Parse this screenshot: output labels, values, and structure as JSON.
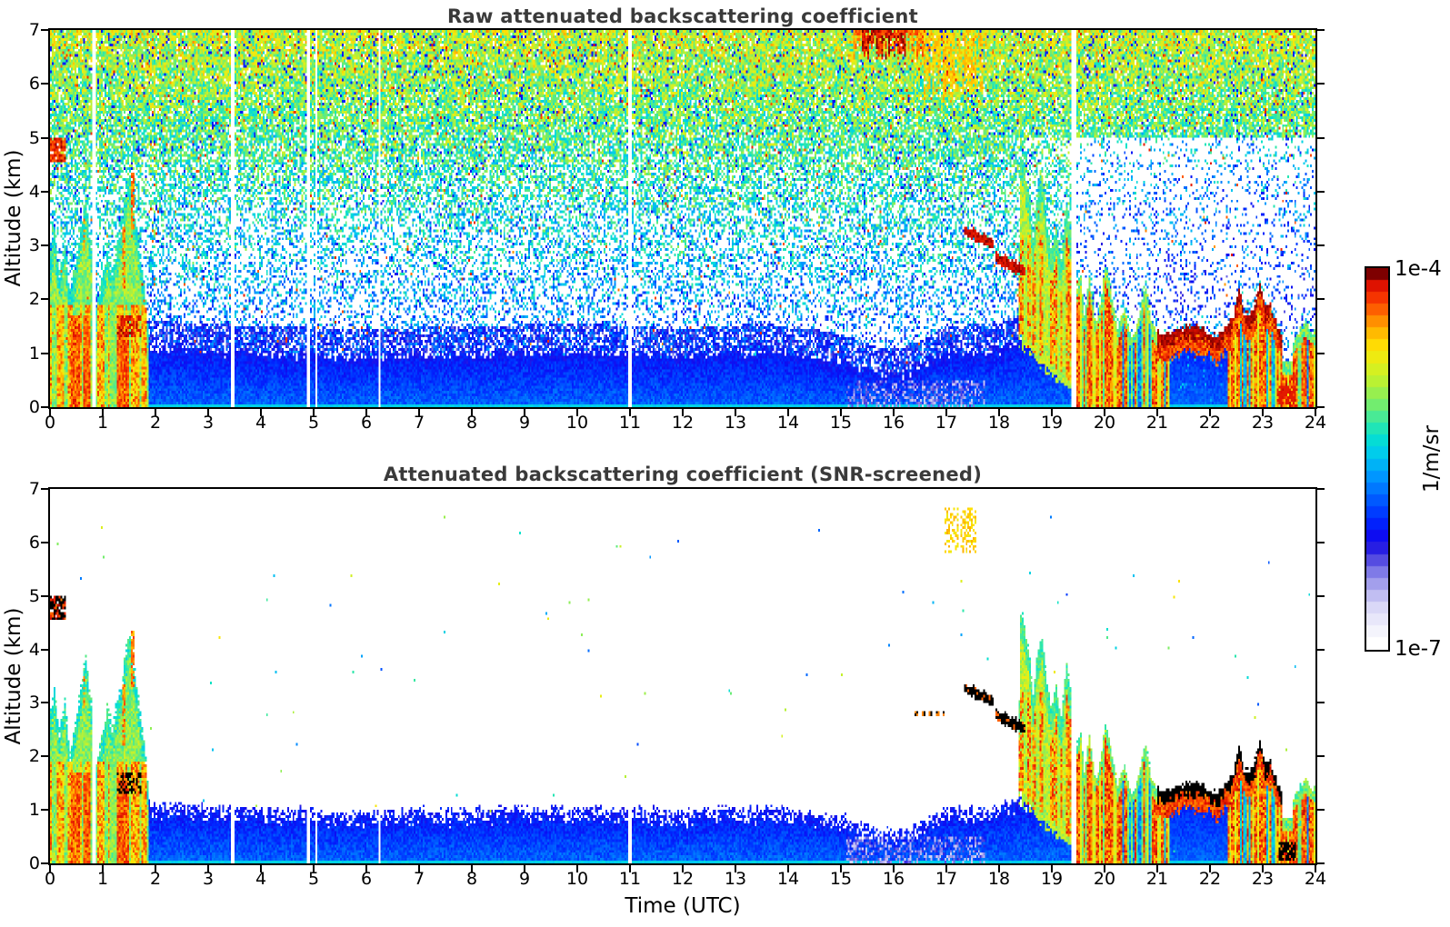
{
  "chart_data": {
    "type": "heatmap",
    "panels": [
      {
        "id": "raw",
        "screened": false,
        "title": "Raw attenuated backscattering coefficient",
        "description": "Time-height lidar curtain, noisy rainbow speckle increasing with altitude; solid blue boundary layer below ~1 km until 19.4 UTC; aerosol plumes 0-1.9 UTC up to 4.4 km; high cloud 15.3-17.8 UTC near 6-7 km; elevated dark-red layers near 3 km at 17.3-18.5 UTC; descending cloud/precipitation structures 18.4-24 UTC with dark-red cloud deck near 1.3 km from 21-23.5 UTC.",
        "x": {
          "label": "",
          "min": 0,
          "max": 24,
          "ticks": [
            0,
            1,
            2,
            3,
            4,
            5,
            6,
            7,
            8,
            9,
            10,
            11,
            12,
            13,
            14,
            15,
            16,
            17,
            18,
            19,
            20,
            21,
            22,
            23,
            24
          ]
        },
        "y": {
          "label": "Altitude (km)",
          "min": 0,
          "max": 7,
          "ticks": [
            0,
            1,
            2,
            3,
            4,
            5,
            6,
            7
          ]
        }
      },
      {
        "id": "screened",
        "screened": true,
        "title": "Attenuated backscattering coefficient (SNR-screened)",
        "description": "Same scene with noise screened to white; saturated returns shown in black (cloud deck, elevated layers, plume cores).",
        "x": {
          "label": "Time (UTC)",
          "min": 0,
          "max": 24,
          "ticks": [
            0,
            1,
            2,
            3,
            4,
            5,
            6,
            7,
            8,
            9,
            10,
            11,
            12,
            13,
            14,
            15,
            16,
            17,
            18,
            19,
            20,
            21,
            22,
            23,
            24
          ]
        },
        "y": {
          "label": "Altitude (km)",
          "min": 0,
          "max": 7,
          "ticks": [
            0,
            1,
            2,
            3,
            4,
            5,
            6,
            7
          ]
        }
      }
    ],
    "colorbar": {
      "max_label": "1e-4",
      "min_label": "1e-7",
      "unit_label": "1/m/sr",
      "scale": "log",
      "vmin": 1e-07,
      "vmax": 0.0001,
      "n_segments": 32,
      "stops": [
        [
          0.0,
          "#ffffff"
        ],
        [
          0.05,
          "#eeeefb"
        ],
        [
          0.1,
          "#d9d7f7"
        ],
        [
          0.14,
          "#b8b4f0"
        ],
        [
          0.18,
          "#908ce9"
        ],
        [
          0.22,
          "#5e56e2"
        ],
        [
          0.25,
          "#2e22df"
        ],
        [
          0.29,
          "#0d0cf1"
        ],
        [
          0.33,
          "#0026ff"
        ],
        [
          0.39,
          "#005cff"
        ],
        [
          0.45,
          "#0095ff"
        ],
        [
          0.51,
          "#00c9ef"
        ],
        [
          0.56,
          "#06e2cd"
        ],
        [
          0.61,
          "#45ea98"
        ],
        [
          0.66,
          "#85ee5e"
        ],
        [
          0.71,
          "#baf133"
        ],
        [
          0.76,
          "#e5ef17"
        ],
        [
          0.8,
          "#ffe205"
        ],
        [
          0.85,
          "#ffae00"
        ],
        [
          0.89,
          "#ff7200"
        ],
        [
          0.93,
          "#f93a00"
        ],
        [
          0.97,
          "#dc1000"
        ],
        [
          1.0,
          "#7e0000"
        ]
      ]
    },
    "scene": {
      "time_range_utc": [
        0,
        24
      ],
      "altitude_range_km": [
        0,
        7
      ],
      "data_gap_times_utc": [
        [
          0.8,
          0.86
        ],
        [
          3.44,
          3.49
        ],
        [
          4.88,
          4.93
        ],
        [
          5.02,
          5.07
        ],
        [
          6.22,
          6.28
        ],
        [
          10.97,
          11.03
        ],
        [
          19.36,
          19.47
        ]
      ],
      "boundary_layer": {
        "end_utc": 19.36,
        "top_km": [
          [
            0,
            1.15
          ],
          [
            2,
            1.1
          ],
          [
            4,
            1.0
          ],
          [
            6,
            0.95
          ],
          [
            8,
            1.0
          ],
          [
            10,
            1.05
          ],
          [
            12,
            0.95
          ],
          [
            13.5,
            1.05
          ],
          [
            14.5,
            0.95
          ],
          [
            15.2,
            0.8
          ],
          [
            15.7,
            0.62
          ],
          [
            16.15,
            0.6
          ],
          [
            16.5,
            0.72
          ],
          [
            16.9,
            0.95
          ],
          [
            17.3,
            1.02
          ],
          [
            18,
            1.05
          ],
          [
            18.45,
            1.25
          ],
          [
            19,
            1.3
          ],
          [
            19.35,
            1.32
          ]
        ],
        "thin_window_utc": [
          15.1,
          17.75
        ]
      },
      "left_plumes": {
        "t_range": [
          0,
          1.88
        ],
        "top_km": [
          [
            0,
            2.7
          ],
          [
            0.08,
            3.3
          ],
          [
            0.18,
            2.4
          ],
          [
            0.28,
            3.1
          ],
          [
            0.38,
            2.0
          ],
          [
            0.48,
            2.6
          ],
          [
            0.58,
            3.2
          ],
          [
            0.68,
            3.9
          ],
          [
            0.78,
            3.0
          ],
          [
            0.88,
            1.9
          ],
          [
            0.98,
            2.3
          ],
          [
            1.08,
            2.95
          ],
          [
            1.18,
            2.5
          ],
          [
            1.28,
            3.05
          ],
          [
            1.38,
            3.4
          ],
          [
            1.5,
            4.4
          ],
          [
            1.6,
            3.6
          ],
          [
            1.7,
            2.95
          ],
          [
            1.8,
            2.1
          ],
          [
            1.88,
            1.2
          ]
        ],
        "red_streaks": [
          [
            1.36,
            1.44,
            2.2,
            3.35
          ],
          [
            1.52,
            1.59,
            3.3,
            4.35
          ],
          [
            0.62,
            0.68,
            2.9,
            3.5
          ]
        ],
        "strong_core_windows": [
          [
            0.4,
            0.55
          ],
          [
            0.62,
            0.78
          ],
          [
            1.28,
            1.5
          ]
        ],
        "black_dots": [
          1.28,
          1.74,
          1.3,
          1.68
        ]
      },
      "aerosol_blob": {
        "t": [
          0,
          0.3
        ],
        "z": [
          4.55,
          5.02
        ]
      },
      "high_cloud": {
        "t": [
          15.25,
          16.6
        ],
        "z_base": 6.25,
        "darkest_t": [
          15.4,
          16.25
        ]
      },
      "virga": {
        "t": [
          16.55,
          17.8
        ],
        "z_top": 6.95,
        "z_base": [
          5.55,
          6.35
        ]
      },
      "orange_blob": {
        "clusters": [
          [
            16.98,
            17.22
          ],
          [
            17.28,
            17.58
          ]
        ],
        "z": [
          5.8,
          6.65
        ]
      },
      "elevated_streaks": [
        {
          "from": [
            17.32,
            3.3
          ],
          "to": [
            17.9,
            3.02
          ],
          "halfwidth": 0.09
        },
        {
          "from": [
            17.93,
            2.78
          ],
          "to": [
            18.5,
            2.52
          ],
          "halfwidth": 0.1
        }
      ],
      "red_dashes": {
        "t": [
          16.38,
          16.98
        ],
        "z": 2.82
      },
      "main_top_km": [
        [
          18.35,
          1.3
        ],
        [
          18.42,
          4.85
        ],
        [
          18.5,
          4.3
        ],
        [
          18.58,
          3.9
        ],
        [
          18.65,
          3.1
        ],
        [
          18.72,
          3.9
        ],
        [
          18.82,
          4.25
        ],
        [
          18.92,
          3.3
        ],
        [
          19,
          2.9
        ],
        [
          19.08,
          3.35
        ],
        [
          19.18,
          2.7
        ],
        [
          19.28,
          3.75
        ],
        [
          19.35,
          3.3
        ],
        [
          19.47,
          2.2
        ],
        [
          19.55,
          2.5
        ],
        [
          19.62,
          1.65
        ],
        [
          19.72,
          2.45
        ],
        [
          19.82,
          1.55
        ],
        [
          19.92,
          1.85
        ],
        [
          20.02,
          2.65
        ],
        [
          20.12,
          2.15
        ],
        [
          20.25,
          1.45
        ],
        [
          20.38,
          1.85
        ],
        [
          20.5,
          1.3
        ],
        [
          20.62,
          1.55
        ],
        [
          20.78,
          2.25
        ],
        [
          20.9,
          1.55
        ],
        [
          21,
          1.42
        ],
        [
          21.1,
          1.35
        ],
        [
          21.3,
          1.4
        ],
        [
          21.55,
          1.48
        ],
        [
          21.8,
          1.52
        ],
        [
          22,
          1.35
        ],
        [
          22.15,
          1.3
        ],
        [
          22.3,
          1.48
        ],
        [
          22.45,
          1.68
        ],
        [
          22.55,
          2.2
        ],
        [
          22.65,
          1.72
        ],
        [
          22.8,
          1.75
        ],
        [
          22.95,
          2.3
        ],
        [
          23.05,
          1.85
        ],
        [
          23.15,
          1.92
        ],
        [
          23.3,
          1.45
        ],
        [
          23.4,
          1.2
        ],
        [
          23.5,
          1.05
        ],
        [
          23.62,
          1.3
        ],
        [
          23.72,
          1.45
        ],
        [
          23.82,
          1.55
        ],
        [
          23.9,
          1.45
        ],
        [
          24,
          1.38
        ]
      ],
      "main_base_km": [
        [
          18.35,
          1.25
        ],
        [
          18.6,
          1.0
        ],
        [
          18.9,
          0.7
        ],
        [
          19.1,
          0.5
        ],
        [
          19.35,
          0.35
        ]
      ],
      "plume_phase_utc": [
        18.35,
        19.35
      ],
      "deck_phase_utc": [
        21.0,
        23.38
      ],
      "deck_underblue_utc": [
        21.25,
        22.32
      ],
      "notch_utc": [
        23.38,
        23.55
      ],
      "black_blob": {
        "t": [
          23.3,
          23.62
        ],
        "z": [
          0.05,
          0.42
        ]
      }
    }
  }
}
